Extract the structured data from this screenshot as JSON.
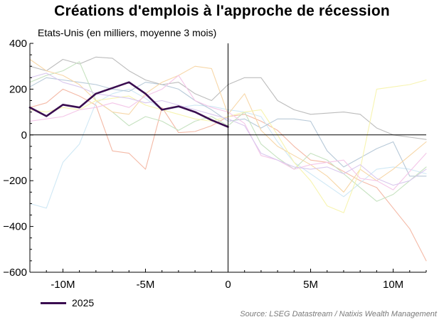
{
  "title": "Créations d'emplois à l'approche de récession",
  "subtitle": "Etats-Unis (en milliers, moyenne 3 mois)",
  "source": "Source: LSEG Datastream / Natixis Wealth Management",
  "chart_data": {
    "type": "line",
    "xlim": [
      -12,
      12
    ],
    "ylim": [
      -600,
      400
    ],
    "x_ticks": [
      -10,
      -5,
      0,
      5,
      10
    ],
    "x_tick_labels": [
      "-10M",
      "-5M",
      "0",
      "5M",
      "10M"
    ],
    "y_ticks": [
      400,
      200,
      0,
      -200,
      -400,
      -600
    ],
    "y_tick_labels": [
      "400",
      "200",
      "0",
      "−200",
      "−400",
      "−600"
    ],
    "grid": false,
    "legend": {
      "position": "bottom-left",
      "entries": [
        "2025"
      ]
    },
    "series": [
      {
        "name": "2025",
        "color": "#3a0d50",
        "highlight": true,
        "x": [
          -12,
          -11,
          -10,
          -9,
          -8,
          -7,
          -6,
          -5,
          -4,
          -3,
          -2,
          -1,
          0
        ],
        "y": [
          120,
          82,
          132,
          120,
          180,
          205,
          230,
          180,
          110,
          125,
          100,
          65,
          35
        ]
      },
      {
        "color": "#f4b9a6",
        "x": [
          -12,
          -11,
          -10,
          -9,
          -8,
          -7,
          -6,
          -5,
          -4,
          -3,
          -2,
          -1,
          0,
          1,
          2,
          3,
          4,
          5,
          6,
          7,
          8,
          9,
          10,
          11,
          12
        ],
        "y": [
          120,
          140,
          200,
          170,
          130,
          -70,
          -80,
          -150,
          120,
          10,
          15,
          40,
          80,
          90,
          60,
          20,
          -50,
          -110,
          -120,
          -160,
          -200,
          -230,
          -320,
          -410,
          -550
        ]
      },
      {
        "color": "#cfe8f5",
        "x": [
          -12,
          -11,
          -10,
          -9,
          -8,
          -7,
          -6,
          -5,
          -4,
          -3,
          -2,
          -1,
          0,
          1,
          2,
          3,
          4,
          5,
          6,
          7,
          8,
          9,
          10,
          11,
          12
        ],
        "y": [
          -300,
          -320,
          -120,
          -40,
          140,
          180,
          200,
          160,
          110,
          120,
          130,
          125,
          110,
          100,
          80,
          -30,
          -120,
          -170,
          -220,
          -270,
          -210,
          -150,
          -140,
          -150,
          -170
        ]
      },
      {
        "color": "#b7c9d8",
        "x": [
          -12,
          -11,
          -10,
          -9,
          -8,
          -7,
          -6,
          -5,
          -4,
          -3,
          -2,
          -1,
          0,
          1,
          2,
          3,
          4,
          5,
          6,
          7,
          8,
          9,
          10,
          11,
          12
        ],
        "y": [
          210,
          250,
          240,
          230,
          220,
          200,
          190,
          230,
          220,
          200,
          150,
          110,
          60,
          70,
          30,
          70,
          70,
          60,
          -70,
          -140,
          -100,
          -60,
          -30,
          -180,
          -180
        ]
      },
      {
        "color": "#bcbcbc",
        "x": [
          -12,
          -11,
          -10,
          -9,
          -8,
          -7,
          -6,
          -5,
          -4,
          -3,
          -2,
          -1,
          0,
          1,
          2,
          3,
          4,
          5,
          6,
          7,
          8,
          9,
          10,
          11,
          12
        ],
        "y": [
          300,
          280,
          330,
          310,
          340,
          335,
          280,
          240,
          220,
          230,
          180,
          150,
          220,
          250,
          250,
          150,
          110,
          90,
          95,
          100,
          90,
          30,
          0,
          -10,
          -20
        ]
      },
      {
        "color": "#c6e2c0",
        "x": [
          -12,
          -11,
          -10,
          -9,
          -8,
          -7,
          -6,
          -5,
          -4,
          -3,
          -2,
          -1,
          0,
          1,
          2,
          3,
          4,
          5,
          6,
          7,
          8,
          9,
          10,
          11,
          12
        ],
        "y": [
          230,
          260,
          280,
          320,
          150,
          100,
          40,
          80,
          60,
          20,
          60,
          80,
          40,
          100,
          -40,
          -100,
          -150,
          -80,
          -110,
          -170,
          -230,
          -290,
          -260,
          -200,
          -140
        ]
      },
      {
        "color": "#f7d7a8",
        "x": [
          -12,
          -11,
          -10,
          -9,
          -8,
          -7,
          -6,
          -5,
          -4,
          -3,
          -2,
          -1,
          0,
          1,
          2,
          3,
          4,
          5,
          6,
          7,
          8,
          9,
          10,
          11,
          12
        ],
        "y": [
          330,
          280,
          260,
          220,
          150,
          100,
          90,
          180,
          230,
          260,
          300,
          290,
          90,
          180,
          20,
          -50,
          -90,
          -130,
          -180,
          -250,
          -150,
          -200,
          -150,
          -90,
          -30
        ]
      },
      {
        "color": "#f7f4b0",
        "x": [
          -12,
          -11,
          -10,
          -9,
          -8,
          -7,
          -6,
          -5,
          -4,
          -3,
          -2,
          -1,
          0,
          1,
          2,
          3,
          4,
          5,
          6,
          7,
          8,
          9,
          10,
          11,
          12
        ],
        "y": [
          110,
          100,
          120,
          110,
          150,
          160,
          170,
          130,
          110,
          90,
          70,
          60,
          80,
          100,
          110,
          0,
          -120,
          -200,
          -310,
          -340,
          -150,
          200,
          210,
          220,
          240
        ]
      },
      {
        "color": "#f4c6e8",
        "x": [
          -12,
          -11,
          -10,
          -9,
          -8,
          -7,
          -6,
          -5,
          -4,
          -3,
          -2,
          -1,
          0,
          1,
          2,
          3,
          4,
          5,
          6,
          7,
          8,
          9,
          10,
          11,
          12
        ],
        "y": [
          60,
          70,
          80,
          110,
          120,
          140,
          120,
          170,
          200,
          260,
          150,
          120,
          100,
          50,
          -90,
          -110,
          -150,
          -130,
          -120,
          -110,
          -190,
          -200,
          -240,
          -160,
          -80
        ]
      },
      {
        "color": "#d9c8ee",
        "x": [
          -12,
          -11,
          -10,
          -9,
          -8,
          -7,
          -6,
          -5,
          -4,
          -3,
          -2,
          -1,
          0,
          1,
          2,
          3,
          4,
          5,
          6,
          7,
          8,
          9,
          10,
          11,
          12
        ],
        "y": [
          250,
          270,
          230,
          210,
          180,
          170,
          160,
          140,
          150,
          130,
          110,
          90,
          70,
          40,
          -80,
          -110,
          -140,
          -150,
          -140,
          -170,
          -130,
          -190,
          -220,
          -200,
          -150
        ]
      }
    ]
  }
}
